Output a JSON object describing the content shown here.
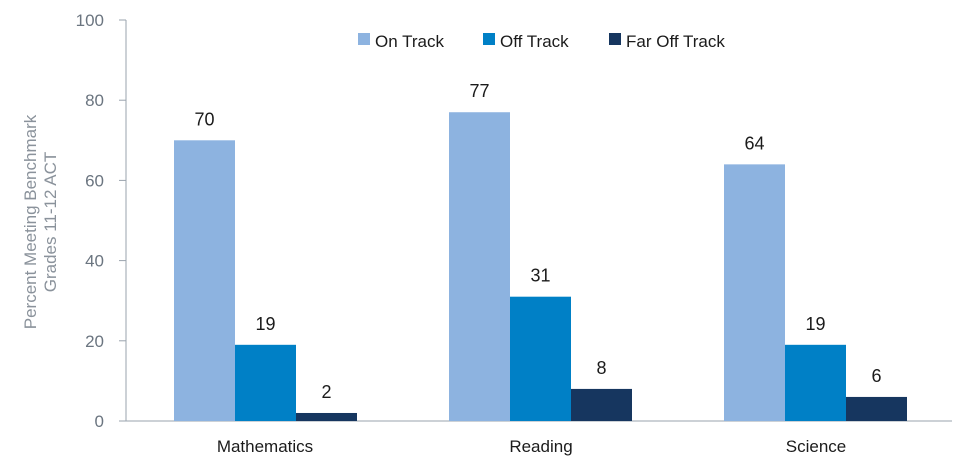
{
  "chart_data": {
    "type": "bar",
    "title": "",
    "xlabel": "",
    "ylabel_lines": [
      "Percent Meeting Benchmark",
      "Grades 11-12 ACT"
    ],
    "ylim": [
      0,
      100
    ],
    "yticks": [
      0,
      20,
      40,
      60,
      80,
      100
    ],
    "grid": false,
    "legend_position": "top",
    "categories": [
      "Mathematics",
      "Reading",
      "Science"
    ],
    "series": [
      {
        "name": "On Track",
        "color": "#8db3e0",
        "values": [
          70,
          77,
          64
        ]
      },
      {
        "name": "Off Track",
        "color": "#0080c6",
        "values": [
          19,
          31,
          19
        ]
      },
      {
        "name": "Far Off Track",
        "color": "#16365f",
        "values": [
          2,
          8,
          6
        ]
      }
    ]
  }
}
